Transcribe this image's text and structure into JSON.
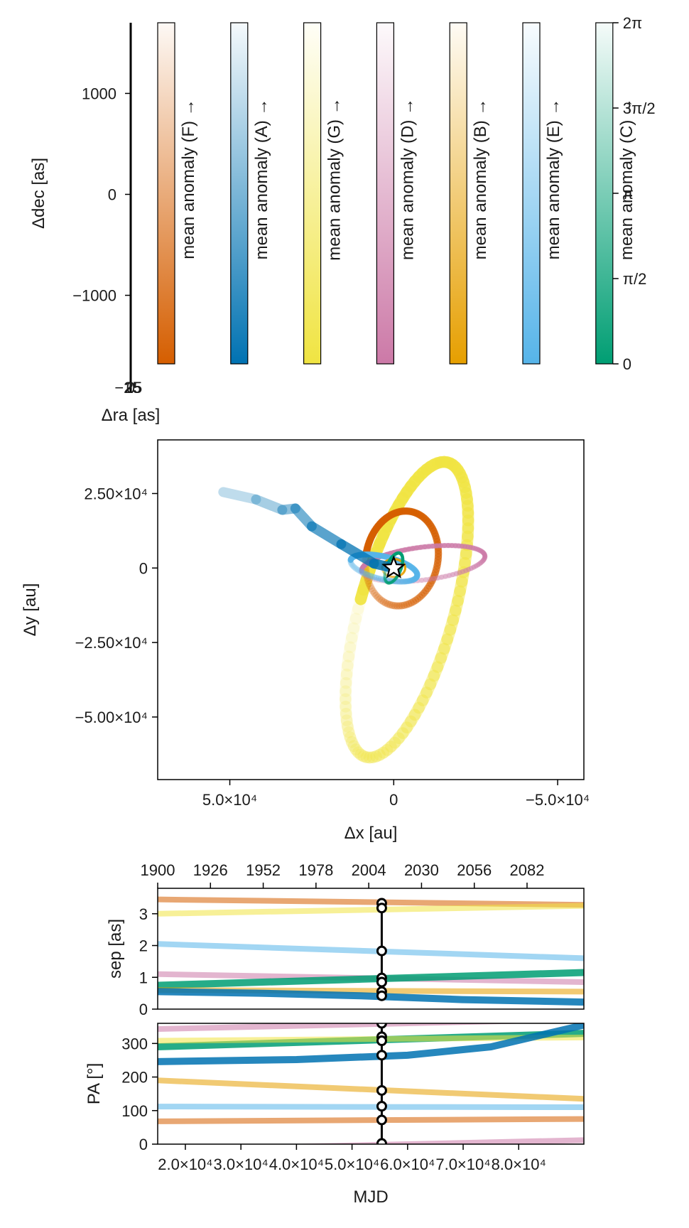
{
  "colors": {
    "F": "#d55e00",
    "A": "#0072b2",
    "G": "#f0e442",
    "D": "#cc79a7",
    "B": "#e69f00",
    "E": "#56b4e9",
    "C": "#009e73"
  },
  "chart_data": [
    {
      "type": "scatter",
      "panel": "sky",
      "xlabel": "Δra [as]",
      "ylabel": "Δdec [as]",
      "ytick_labels": [
        "1000",
        "0",
        "−1000"
      ],
      "yticks": [
        1000,
        0,
        -1000
      ],
      "ylim": [
        -1700,
        1700
      ],
      "xtick_labels": [
        "−25",
        "0",
        "25"
      ]
    },
    {
      "type": "colorbar",
      "panel": "colorbars",
      "labels": [
        "mean anomaly (F) →",
        "mean anomaly (A) →",
        "mean anomaly (G) →",
        "mean anomaly (D) →",
        "mean anomaly (B) →",
        "mean anomaly (E) →",
        "mean anomaly (C) →"
      ],
      "series_keys": [
        "F",
        "A",
        "G",
        "D",
        "B",
        "E",
        "C"
      ],
      "range": [
        0,
        6.2832
      ],
      "tick_values": [
        0,
        1.5708,
        3.1416,
        4.7124,
        6.2832
      ],
      "tick_labels": [
        "0",
        "π/2",
        "π",
        "3π/2",
        "2π"
      ]
    },
    {
      "type": "line",
      "panel": "orbit",
      "xlabel": "Δx [au]",
      "ylabel": "Δy [au]",
      "xlim": [
        72000,
        -58000
      ],
      "ylim": [
        -71000,
        43000
      ],
      "xticks": [
        50000,
        0,
        -50000
      ],
      "xtick_labels": [
        "5.0×10⁴",
        "0",
        "−5.0×10⁴"
      ],
      "yticks": [
        25000,
        0,
        -25000,
        -50000
      ],
      "ytick_labels": [
        "2.50×10⁴",
        "0",
        "−2.50×10⁴",
        "−5.00×10⁴"
      ],
      "series": [
        {
          "key": "G",
          "shape": "ellipse",
          "cx": -4000,
          "cy": -14000,
          "rx": 14500,
          "ry": 51000,
          "angle": 14,
          "width": 3600
        },
        {
          "key": "F",
          "shape": "ellipse",
          "cx": -2500,
          "cy": 3200,
          "rx": 11000,
          "ry": 16000,
          "angle": 8,
          "width": 2200
        },
        {
          "key": "D",
          "shape": "ellipse",
          "cx": -9000,
          "cy": 1500,
          "rx": 19000,
          "ry": 5500,
          "angle": -8,
          "width": 1500
        },
        {
          "key": "E",
          "shape": "ellipse",
          "cx": 3000,
          "cy": 0,
          "rx": 10500,
          "ry": 3800,
          "angle": 15,
          "width": 1800
        },
        {
          "key": "B",
          "shape": "ellipse",
          "cx": 0,
          "cy": 0,
          "rx": 3500,
          "ry": 3000,
          "angle": 0,
          "width": 700
        },
        {
          "key": "C",
          "shape": "ellipse",
          "cx": 0,
          "cy": 0,
          "rx": 2200,
          "ry": 5300,
          "angle": 20,
          "width": 1000
        },
        {
          "key": "A",
          "shape": "fan",
          "x": [
            52000,
            42000,
            34000,
            30000,
            25000,
            16000,
            6000,
            0
          ],
          "y": [
            25500,
            23000,
            19500,
            20000,
            14000,
            8000,
            1500,
            0
          ]
        }
      ],
      "star": {
        "x": 0,
        "y": 0
      }
    },
    {
      "type": "line",
      "panel": "separation",
      "ylabel": "sep [as]",
      "ylim": [
        0,
        3.8
      ],
      "yticks": [
        0,
        1,
        2,
        3
      ],
      "ytick_labels": [
        "0",
        "1",
        "2",
        "3"
      ],
      "xlim": [
        1900,
        2110
      ],
      "top_xticks": [
        1900,
        1926,
        1952,
        1978,
        2004,
        2030,
        2056,
        2082
      ],
      "top_xtick_labels": [
        "1900",
        "1926",
        "1952",
        "1978",
        "2004",
        "2030",
        "2056",
        "2082"
      ],
      "epoch": 2010.4,
      "series": [
        {
          "key": "F",
          "x": [
            1900,
            2110
          ],
          "y": [
            3.45,
            3.28
          ]
        },
        {
          "key": "G",
          "x": [
            1900,
            2110
          ],
          "y": [
            3.0,
            3.25
          ]
        },
        {
          "key": "E",
          "x": [
            1900,
            2110
          ],
          "y": [
            2.05,
            1.6
          ]
        },
        {
          "key": "D",
          "x": [
            1900,
            2110
          ],
          "y": [
            1.1,
            0.85
          ]
        },
        {
          "key": "C",
          "x": [
            1900,
            2110
          ],
          "y": [
            0.75,
            1.15
          ]
        },
        {
          "key": "B",
          "x": [
            1900,
            2110
          ],
          "y": [
            0.6,
            0.55
          ]
        },
        {
          "key": "A",
          "x": [
            1900,
            1950,
            2000,
            2050,
            2110
          ],
          "y": [
            0.55,
            0.5,
            0.42,
            0.3,
            0.22
          ]
        }
      ],
      "observations_y": [
        3.33,
        3.18,
        1.83,
        0.98,
        0.85,
        0.55,
        0.42
      ]
    },
    {
      "type": "line",
      "panel": "position-angle",
      "xlabel": "MJD",
      "ylabel": "PA [°]",
      "ylim": [
        0,
        360
      ],
      "yticks": [
        0,
        100,
        200,
        300
      ],
      "ytick_labels": [
        "0",
        "100",
        "200",
        "300"
      ],
      "xlim": [
        15020,
        91730
      ],
      "xticks": [
        20000,
        30000,
        40000,
        50000,
        60000,
        70000,
        80000
      ],
      "xtick_labels": [
        "2.0×10⁴",
        "3.0×10⁴",
        "4.0×10⁴",
        "5.0×10⁴",
        "6.0×10⁴",
        "7.0×10⁴",
        "8.0×10⁴"
      ],
      "epoch": 55350,
      "series": [
        {
          "key": "D",
          "x": [
            15020,
            91730
          ],
          "y": [
            343,
            372
          ]
        },
        {
          "key": "C",
          "x": [
            15020,
            91730
          ],
          "y": [
            290,
            330
          ]
        },
        {
          "key": "G",
          "x": [
            15020,
            91730
          ],
          "y": [
            308,
            318
          ]
        },
        {
          "key": "A",
          "x": [
            15020,
            40000,
            60000,
            75000,
            91730
          ],
          "y": [
            246,
            252,
            265,
            290,
            355
          ]
        },
        {
          "key": "B",
          "x": [
            15020,
            91730
          ],
          "y": [
            190,
            135
          ]
        },
        {
          "key": "E",
          "x": [
            15020,
            91730
          ],
          "y": [
            112,
            110
          ]
        },
        {
          "key": "F",
          "x": [
            15020,
            91730
          ],
          "y": [
            68,
            75
          ]
        },
        {
          "key": "D",
          "x": [
            15020,
            91730
          ],
          "y": [
            -17,
            12
          ]
        }
      ],
      "observations_y": [
        360,
        320,
        308,
        265,
        160,
        113,
        72,
        2
      ]
    }
  ]
}
